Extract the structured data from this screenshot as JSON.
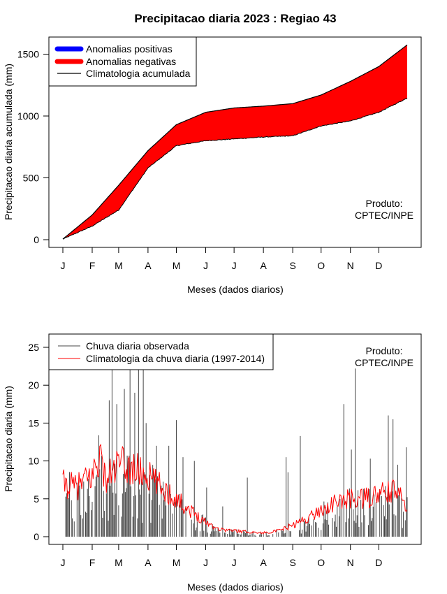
{
  "title": "Precipitacao diaria 2023 : Regiao 43",
  "colors": {
    "positive": "#0000ff",
    "negative": "#ff0000",
    "climatology": "#000000",
    "observed": "#444444",
    "clim_daily": "#ff0000"
  },
  "chart_data": [
    {
      "type": "area",
      "xlabel": "Meses (dados diarios)",
      "ylabel": "Precipitacao diaria acumulada (mm)",
      "xlim": [
        1,
        365
      ],
      "ylim": [
        0,
        1600
      ],
      "y_ticks": [
        0,
        500,
        1000,
        1500
      ],
      "x_ticks": [
        {
          "label": "J",
          "day": 1
        },
        {
          "label": "F",
          "day": 32
        },
        {
          "label": "M",
          "day": 60
        },
        {
          "label": "A",
          "day": 91
        },
        {
          "label": "M",
          "day": 121
        },
        {
          "label": "J",
          "day": 152
        },
        {
          "label": "J",
          "day": 182
        },
        {
          "label": "A",
          "day": 213
        },
        {
          "label": "S",
          "day": 244
        },
        {
          "label": "O",
          "day": 274
        },
        {
          "label": "N",
          "day": 305
        },
        {
          "label": "D",
          "day": 335
        }
      ],
      "legend": {
        "position": "top-left",
        "entries": [
          "Anomalias positivas",
          "Anomalias negativas",
          "Climatologia acumulada"
        ]
      },
      "annotation": [
        "Produto:",
        "CPTEC/INPE"
      ],
      "climatology_cumulative": {
        "days": [
          1,
          32,
          60,
          91,
          121,
          152,
          182,
          213,
          244,
          274,
          305,
          335,
          365
        ],
        "values": [
          5,
          200,
          440,
          720,
          930,
          1030,
          1065,
          1080,
          1100,
          1170,
          1280,
          1400,
          1575
        ]
      },
      "observed_cumulative": {
        "days": [
          1,
          32,
          60,
          91,
          121,
          152,
          182,
          213,
          244,
          274,
          305,
          335,
          365
        ],
        "values": [
          5,
          110,
          240,
          580,
          760,
          800,
          815,
          830,
          840,
          920,
          960,
          1030,
          1145
        ]
      }
    },
    {
      "type": "bar",
      "xlabel": "Meses (dados diarios)",
      "ylabel": "Precipitacao diaria (mm)",
      "xlim": [
        1,
        365
      ],
      "ylim": [
        0,
        25
      ],
      "y_ticks": [
        0,
        5,
        10,
        15,
        20,
        25
      ],
      "x_ticks": [
        {
          "label": "J",
          "day": 1
        },
        {
          "label": "F",
          "day": 32
        },
        {
          "label": "M",
          "day": 60
        },
        {
          "label": "A",
          "day": 91
        },
        {
          "label": "M",
          "day": 121
        },
        {
          "label": "J",
          "day": 152
        },
        {
          "label": "J",
          "day": 182
        },
        {
          "label": "A",
          "day": 213
        },
        {
          "label": "S",
          "day": 244
        },
        {
          "label": "O",
          "day": 274
        },
        {
          "label": "N",
          "day": 305
        },
        {
          "label": "D",
          "day": 335
        }
      ],
      "legend": {
        "position": "top-left",
        "entries": [
          "Chuva diaria observada",
          "Climatologia da chuva diaria (1997-2014)"
        ]
      },
      "annotation": [
        "Produto:",
        "CPTEC/INPE"
      ],
      "observed_daily_peaks": [
        {
          "day": 50,
          "value": 18
        },
        {
          "day": 53,
          "value": 23
        },
        {
          "day": 58,
          "value": 17.5
        },
        {
          "day": 66,
          "value": 19.5
        },
        {
          "day": 72,
          "value": 23
        },
        {
          "day": 77,
          "value": 19
        },
        {
          "day": 81,
          "value": 23
        },
        {
          "day": 86,
          "value": 23
        },
        {
          "day": 89,
          "value": 15
        },
        {
          "day": 100,
          "value": 12
        },
        {
          "day": 113,
          "value": 12
        },
        {
          "day": 121,
          "value": 15.4
        },
        {
          "day": 128,
          "value": 10.5
        },
        {
          "day": 140,
          "value": 10
        },
        {
          "day": 153,
          "value": 6.5
        },
        {
          "day": 170,
          "value": 4
        },
        {
          "day": 196,
          "value": 7.8
        },
        {
          "day": 237,
          "value": 10.5
        },
        {
          "day": 239,
          "value": 8.5
        },
        {
          "day": 252,
          "value": 13.3
        },
        {
          "day": 298,
          "value": 17.5
        },
        {
          "day": 306,
          "value": 11.5
        },
        {
          "day": 310,
          "value": 22.2
        },
        {
          "day": 326,
          "value": 10.3
        },
        {
          "day": 345,
          "value": 16
        },
        {
          "day": 350,
          "value": 15.5
        },
        {
          "day": 355,
          "value": 9.5
        },
        {
          "day": 364,
          "value": 11.8
        }
      ],
      "climatology_daily": {
        "days": [
          1,
          15,
          32,
          40,
          46,
          60,
          75,
          91,
          105,
          121,
          135,
          152,
          166,
          182,
          200,
          213,
          230,
          244,
          260,
          274,
          290,
          305,
          320,
          335,
          350,
          365
        ],
        "values": [
          7,
          6.5,
          8,
          11,
          7.5,
          9.5,
          9,
          8,
          6.5,
          5,
          3.5,
          2,
          1,
          0.8,
          0.6,
          0.5,
          0.8,
          1.5,
          2.5,
          3.5,
          4.5,
          5,
          5,
          5.5,
          6,
          4.5
        ]
      }
    }
  ]
}
